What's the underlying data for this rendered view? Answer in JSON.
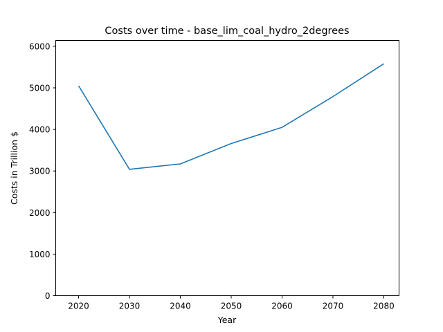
{
  "chart_data": {
    "type": "line",
    "title": "Costs over time - base_lim_coal_hydro_2degrees",
    "xlabel": "Year",
    "ylabel": "Costs in Trillion $",
    "x": [
      2020,
      2030,
      2040,
      2050,
      2060,
      2070,
      2080
    ],
    "series": [
      {
        "values": [
          5050,
          3040,
          3170,
          3660,
          4050,
          4790,
          5580
        ]
      }
    ],
    "xlim": [
      2015.5,
      2083
    ],
    "ylim": [
      0,
      6140
    ],
    "xticks": [
      "2020",
      "2030",
      "2040",
      "2050",
      "2060",
      "2070",
      "2080"
    ],
    "yticks": [
      "0",
      "1000",
      "2000",
      "3000",
      "4000",
      "5000",
      "6000"
    ],
    "colors": {
      "series": "#1f77b4"
    },
    "grid": false,
    "legend": "none"
  }
}
